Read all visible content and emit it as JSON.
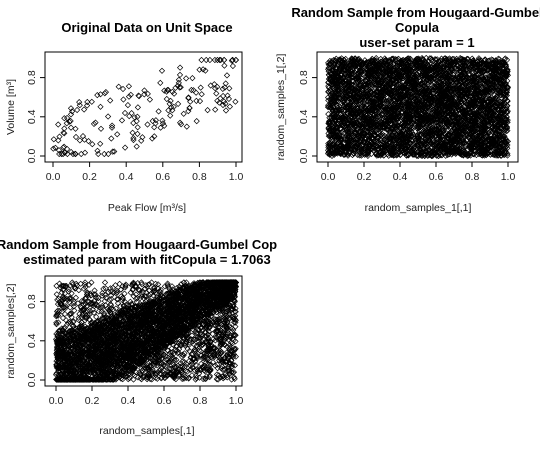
{
  "chart_data": [
    {
      "type": "scatter",
      "marker": "open-diamond",
      "title_lines": [
        "Original Data on Unit Space"
      ],
      "xlabel": "Peak Flow [m³/s]",
      "ylabel": "Volume [m³]",
      "xlim": [
        0,
        1
      ],
      "ylim": [
        0,
        1
      ],
      "x_ticks": [
        "0.0",
        "0.2",
        "0.4",
        "0.6",
        "0.8",
        "1.0"
      ],
      "y_ticks": [
        "0.0",
        "0.4",
        "0.8"
      ],
      "point_count_estimate": 200,
      "dependence": "moderate positive",
      "grid": false
    },
    {
      "type": "scatter",
      "marker": "open-diamond",
      "title_lines": [
        "Random Sample from Hougaard-Gumbel",
        "Copula",
        "user-set param = 1"
      ],
      "xlabel": "random_samples_1[,1]",
      "ylabel": "random_samples_1[,2]",
      "xlim": [
        0,
        1
      ],
      "ylim": [
        0,
        1
      ],
      "x_ticks": [
        "0.0",
        "0.2",
        "0.4",
        "0.6",
        "0.8",
        "1.0"
      ],
      "y_ticks": [
        "0.0",
        "0.4",
        "0.8"
      ],
      "point_count_estimate": 5000,
      "dependence": "independent (uniform)",
      "grid": false
    },
    {
      "type": "scatter",
      "marker": "open-diamond",
      "title_lines": [
        "Random Sample from Hougaard-Gumbel Cop",
        "estimated param with fitCopula = 1.7063"
      ],
      "xlabel": "random_samples[,1]",
      "ylabel": "random_samples[,2]",
      "xlim": [
        0,
        1
      ],
      "ylim": [
        0,
        1
      ],
      "x_ticks": [
        "0.0",
        "0.2",
        "0.4",
        "0.6",
        "0.8",
        "1.0"
      ],
      "y_ticks": [
        "0.0",
        "0.4",
        "0.8"
      ],
      "point_count_estimate": 5000,
      "dependence": "positive, upper-tail concentration",
      "grid": false
    }
  ]
}
